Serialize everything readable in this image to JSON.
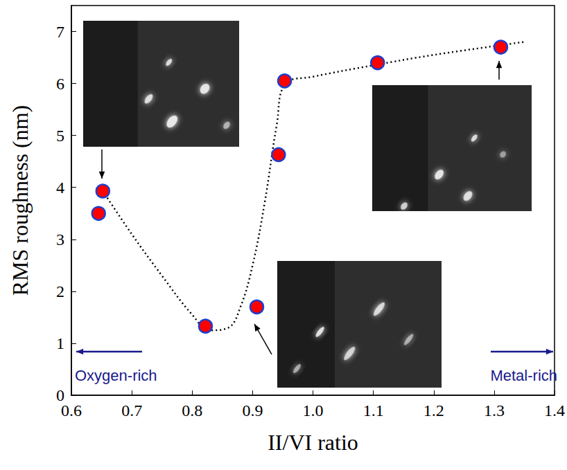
{
  "chart_data": {
    "type": "scatter",
    "x_label": "II/VI ratio",
    "y_label": "RMS roughness (nm)",
    "xlim": [
      0.6,
      1.4
    ],
    "xticks": [
      0.6,
      0.7,
      0.8,
      0.9,
      {
        "value": 1,
        "label": "1.0"
      },
      1.1,
      1.2,
      1.3,
      1.4
    ],
    "ylim": [
      0,
      7.5
    ],
    "yticks": [
      0,
      1,
      2,
      3,
      4,
      5,
      6,
      7
    ],
    "grid": false,
    "series": [
      {
        "type": "scatter",
        "marker": "circle",
        "color": "#ff0000",
        "x": [
          0.645,
          0.652,
          0.822,
          0.907,
          0.943,
          0.953,
          1.107,
          1.311
        ],
        "values": [
          3.5,
          3.93,
          1.33,
          1.7,
          4.63,
          6.05,
          6.4,
          6.7
        ]
      },
      {
        "type": "line",
        "line_style": "dotted",
        "color": "#000000",
        "x": [
          0.652,
          0.7,
          0.75,
          0.8,
          0.83,
          0.86,
          0.88,
          0.9,
          0.92,
          0.94,
          0.955,
          1.0,
          1.1,
          1.2,
          1.35
        ],
        "values": [
          3.93,
          3.1,
          2.3,
          1.55,
          1.25,
          1.3,
          1.7,
          2.5,
          3.7,
          5.2,
          6.0,
          6.13,
          6.35,
          6.55,
          6.8
        ]
      }
    ],
    "annotations": [
      "Oxygen-rich",
      "Metal-rich"
    ]
  }
}
